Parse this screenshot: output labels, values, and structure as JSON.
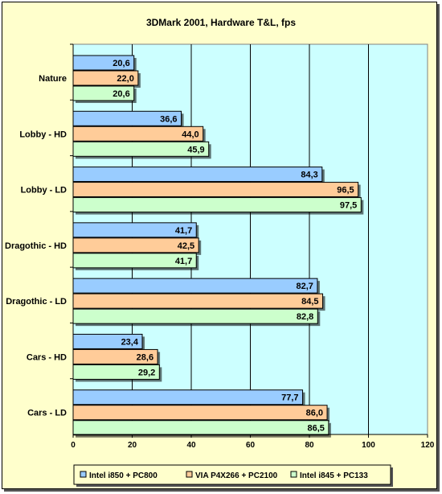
{
  "chart_data": {
    "type": "bar",
    "orientation": "horizontal",
    "title": "3DMark 2001, Hardware T&L, fps",
    "categories": [
      "Nature",
      "Lobby - HD",
      "Lobby - LD",
      "Dragothic - HD",
      "Dragothic - LD",
      "Cars - HD",
      "Cars - LD"
    ],
    "series": [
      {
        "name": "Intel i850 + PC800",
        "color": "#99ccff",
        "values": [
          20.6,
          36.6,
          84.3,
          41.7,
          82.7,
          23.4,
          77.7
        ],
        "labels": [
          "20,6",
          "36,6",
          "84,3",
          "41,7",
          "82,7",
          "23,4",
          "77,7"
        ]
      },
      {
        "name": "VIA P4X266 + PC2100",
        "color": "#ffcc99",
        "values": [
          22.0,
          44.0,
          96.5,
          42.5,
          84.5,
          28.6,
          86.0
        ],
        "labels": [
          "22,0",
          "44,0",
          "96,5",
          "42,5",
          "84,5",
          "28,6",
          "86,0"
        ]
      },
      {
        "name": "Intel i845 + PC133",
        "color": "#ccffcc",
        "values": [
          20.6,
          45.9,
          97.5,
          41.7,
          82.8,
          29.2,
          86.5
        ],
        "labels": [
          "20,6",
          "45,9",
          "97,5",
          "41,7",
          "82,8",
          "29,2",
          "86,5"
        ]
      }
    ],
    "xlim": [
      0,
      120
    ],
    "xticks": [
      0,
      20,
      40,
      60,
      80,
      100,
      120
    ],
    "xtick_labels": [
      "0",
      "20",
      "40",
      "60",
      "80",
      "100",
      "120"
    ],
    "grid": true,
    "plot_background": "#ccffff",
    "chart_background": "#ffffcc",
    "legend_position": "bottom"
  }
}
